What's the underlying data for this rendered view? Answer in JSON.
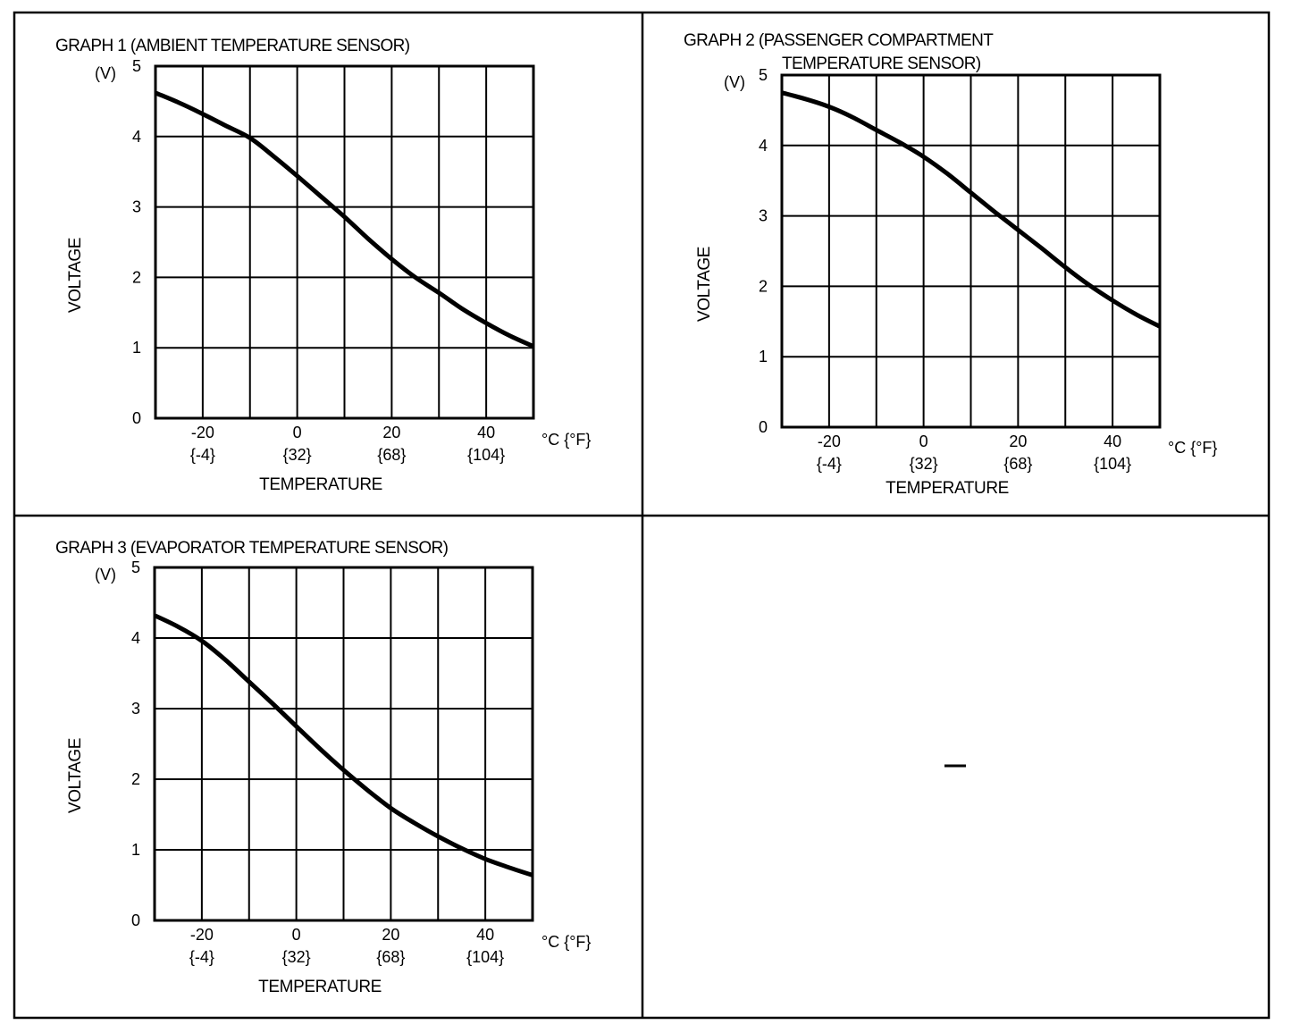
{
  "page": {
    "empty_panel_mark": "—"
  },
  "chart_data": [
    {
      "type": "line",
      "title": "GRAPH 1 (AMBIENT TEMPERATURE SENSOR)",
      "title_lines": [
        "GRAPH 1 (AMBIENT TEMPERATURE SENSOR)"
      ],
      "xlabel": "TEMPERATURE",
      "ylabel": "VOLTAGE",
      "yunit": "(V)",
      "xunit": "°C {°F}",
      "xlim": [
        -30,
        50
      ],
      "ylim": [
        0,
        5
      ],
      "x_grid_step": 10,
      "y_grid_step": 1,
      "grid": true,
      "xticks": [
        {
          "value": -20,
          "label": "-20",
          "sublabel": "{-4}"
        },
        {
          "value": 0,
          "label": "0",
          "sublabel": "{32}"
        },
        {
          "value": 20,
          "label": "20",
          "sublabel": "{68}"
        },
        {
          "value": 40,
          "label": "40",
          "sublabel": "{104}"
        }
      ],
      "yticks": [
        "0",
        "1",
        "2",
        "3",
        "4",
        "5"
      ],
      "series": [
        {
          "name": "Ambient temperature sensor",
          "x": [
            -30,
            -25,
            -20,
            -15,
            -10,
            -5,
            0,
            5,
            10,
            15,
            20,
            25,
            30,
            35,
            40,
            45,
            50
          ],
          "y": [
            4.62,
            4.48,
            4.32,
            4.15,
            3.98,
            3.72,
            3.44,
            3.15,
            2.86,
            2.55,
            2.26,
            2.0,
            1.78,
            1.55,
            1.35,
            1.17,
            1.02
          ]
        }
      ]
    },
    {
      "type": "line",
      "title": "GRAPH 2 (PASSENGER COMPARTMENT TEMPERATURE SENSOR)",
      "title_lines": [
        "GRAPH 2   (PASSENGER COMPARTMENT",
        "TEMPERATURE SENSOR)"
      ],
      "xlabel": "TEMPERATURE",
      "ylabel": "VOLTAGE",
      "yunit": "(V)",
      "xunit": "°C {°F}",
      "xlim": [
        -30,
        50
      ],
      "ylim": [
        0,
        5
      ],
      "x_grid_step": 10,
      "y_grid_step": 1,
      "grid": true,
      "xticks": [
        {
          "value": -20,
          "label": "-20",
          "sublabel": "{-4}"
        },
        {
          "value": 0,
          "label": "0",
          "sublabel": "{32}"
        },
        {
          "value": 20,
          "label": "20",
          "sublabel": "{68}"
        },
        {
          "value": 40,
          "label": "40",
          "sublabel": "{104}"
        }
      ],
      "yticks": [
        "0",
        "1",
        "2",
        "3",
        "4",
        "5"
      ],
      "series": [
        {
          "name": "Passenger compartment temperature sensor",
          "x": [
            -30,
            -25,
            -20,
            -15,
            -10,
            -5,
            0,
            5,
            10,
            15,
            20,
            25,
            30,
            35,
            40,
            45,
            50
          ],
          "y": [
            4.75,
            4.66,
            4.55,
            4.4,
            4.22,
            4.04,
            3.84,
            3.6,
            3.33,
            3.06,
            2.8,
            2.54,
            2.27,
            2.02,
            1.8,
            1.6,
            1.43
          ]
        }
      ]
    },
    {
      "type": "line",
      "title": "GRAPH 3 (EVAPORATOR TEMPERATURE SENSOR)",
      "title_lines": [
        "GRAPH 3 (EVAPORATOR TEMPERATURE SENSOR)"
      ],
      "xlabel": "TEMPERATURE",
      "ylabel": "VOLTAGE",
      "yunit": "(V)",
      "xunit": "°C {°F}",
      "xlim": [
        -30,
        50
      ],
      "ylim": [
        0,
        5
      ],
      "x_grid_step": 10,
      "y_grid_step": 1,
      "grid": true,
      "xticks": [
        {
          "value": -20,
          "label": "-20",
          "sublabel": "{-4}"
        },
        {
          "value": 0,
          "label": "0",
          "sublabel": "{32}"
        },
        {
          "value": 20,
          "label": "20",
          "sublabel": "{68}"
        },
        {
          "value": 40,
          "label": "40",
          "sublabel": "{104}"
        }
      ],
      "yticks": [
        "0",
        "1",
        "2",
        "3",
        "4",
        "5"
      ],
      "series": [
        {
          "name": "Evaporator temperature sensor",
          "x": [
            -30,
            -25,
            -20,
            -15,
            -10,
            -5,
            0,
            5,
            10,
            15,
            20,
            25,
            30,
            35,
            40,
            45,
            50
          ],
          "y": [
            4.32,
            4.16,
            3.96,
            3.69,
            3.38,
            3.07,
            2.75,
            2.43,
            2.13,
            1.85,
            1.59,
            1.38,
            1.19,
            1.02,
            0.87,
            0.75,
            0.64
          ]
        }
      ]
    }
  ]
}
